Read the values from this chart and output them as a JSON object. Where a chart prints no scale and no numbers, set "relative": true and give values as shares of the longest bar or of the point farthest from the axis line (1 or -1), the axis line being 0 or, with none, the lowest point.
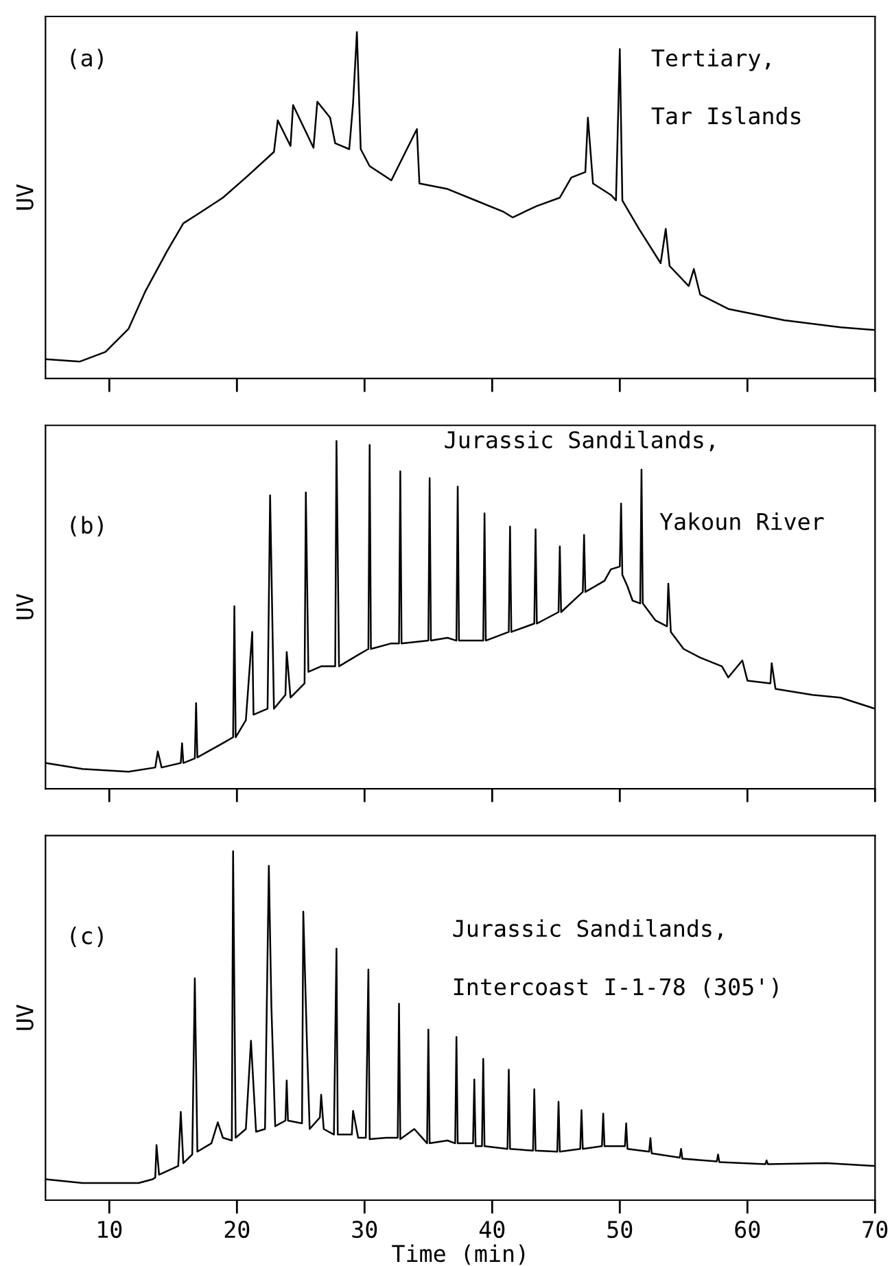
{
  "chart_data": [
    {
      "type": "line",
      "relative": true,
      "ylabel": "UV",
      "xlim": [
        5,
        70
      ],
      "xticks": [
        10,
        20,
        30,
        40,
        50,
        60,
        70
      ],
      "tick_labels": false,
      "color": "#000000",
      "annotations": [
        "(a)",
        "Tertiary,",
        "Tar Islands"
      ],
      "x": [
        5,
        7.7,
        9.7,
        11.5,
        12.8,
        14.5,
        15.8,
        17.2,
        18.9,
        20.7,
        22.9,
        23.2,
        24.2,
        24.4,
        26.0,
        26.3,
        27.3,
        27.7,
        28.8,
        29.1,
        29.4,
        29.7,
        30.4,
        32.1,
        34.1,
        34.3,
        36.5,
        38.7,
        40.9,
        41.6,
        43.5,
        45.3,
        46.2,
        47.3,
        47.5,
        47.9,
        49.3,
        49.7,
        50.0,
        50.2,
        51.5,
        53.2,
        53.6,
        53.9,
        55.4,
        55.8,
        56.3,
        58.5,
        62.9,
        67.3,
        70
      ],
      "values": [
        0.056,
        0.049,
        0.077,
        0.143,
        0.25,
        0.366,
        0.448,
        0.481,
        0.522,
        0.58,
        0.654,
        0.745,
        0.671,
        0.789,
        0.666,
        0.799,
        0.753,
        0.679,
        0.662,
        0.794,
        1.0,
        0.662,
        0.613,
        0.572,
        0.72,
        0.563,
        0.547,
        0.514,
        0.481,
        0.465,
        0.498,
        0.522,
        0.58,
        0.596,
        0.753,
        0.563,
        0.53,
        0.514,
        0.951,
        0.514,
        0.432,
        0.333,
        0.432,
        0.325,
        0.267,
        0.316,
        0.242,
        0.201,
        0.168,
        0.148,
        0.14
      ]
    },
    {
      "type": "line",
      "relative": true,
      "ylabel": "UV",
      "xlim": [
        5,
        70
      ],
      "xticks": [
        10,
        20,
        30,
        40,
        50,
        60,
        70
      ],
      "tick_labels": false,
      "color": "#000000",
      "annotations": [
        "(b)",
        "Jurassic Sandilands,",
        "Yakoun River"
      ],
      "x": [
        5,
        7.9,
        11.5,
        13.6,
        13.8,
        14.1,
        15.6,
        15.7,
        15.8,
        16.7,
        16.8,
        16.9,
        18.9,
        19.7,
        19.8,
        19.9,
        20.7,
        21.2,
        21.3,
        22.4,
        22.6,
        22.9,
        23.8,
        23.9,
        24.2,
        25.3,
        25.4,
        25.6,
        26.6,
        27.7,
        27.8,
        28.0,
        29.5,
        30.3,
        30.4,
        30.5,
        32.1,
        32.7,
        32.8,
        32.9,
        35.0,
        35.1,
        35.2,
        36.5,
        37.2,
        37.3,
        37.4,
        39.3,
        39.4,
        39.5,
        41.3,
        41.4,
        41.5,
        43.3,
        43.4,
        43.5,
        45.2,
        45.3,
        45.4,
        47.1,
        47.2,
        47.3,
        48.8,
        49.3,
        50.0,
        50.1,
        50.2,
        50.6,
        51.0,
        51.6,
        51.7,
        51.8,
        52.8,
        53.7,
        53.8,
        54.0,
        55.0,
        56.3,
        58.0,
        58.5,
        59.6,
        60.0,
        61.8,
        61.9,
        62.2,
        65.1,
        67.3,
        70
      ],
      "values": [
        0.074,
        0.057,
        0.049,
        0.061,
        0.107,
        0.061,
        0.074,
        0.131,
        0.074,
        0.087,
        0.246,
        0.09,
        0.131,
        0.148,
        0.525,
        0.148,
        0.197,
        0.451,
        0.213,
        0.23,
        0.844,
        0.23,
        0.27,
        0.393,
        0.262,
        0.303,
        0.852,
        0.336,
        0.352,
        0.352,
        1.0,
        0.352,
        0.385,
        0.402,
        0.989,
        0.402,
        0.418,
        0.418,
        0.913,
        0.418,
        0.426,
        0.893,
        0.426,
        0.434,
        0.426,
        0.869,
        0.426,
        0.426,
        0.792,
        0.426,
        0.451,
        0.754,
        0.451,
        0.475,
        0.746,
        0.475,
        0.508,
        0.697,
        0.508,
        0.566,
        0.73,
        0.566,
        0.598,
        0.631,
        0.639,
        0.82,
        0.615,
        0.582,
        0.541,
        0.533,
        0.918,
        0.533,
        0.484,
        0.467,
        0.59,
        0.451,
        0.402,
        0.377,
        0.352,
        0.32,
        0.369,
        0.311,
        0.303,
        0.361,
        0.287,
        0.27,
        0.262,
        0.23
      ]
    },
    {
      "type": "line",
      "relative": true,
      "ylabel": "UV",
      "xlabel": "Time (min)",
      "xlim": [
        5,
        70
      ],
      "xticks": [
        10,
        20,
        30,
        40,
        50,
        60,
        70
      ],
      "tick_labels": "x",
      "color": "#000000",
      "annotations": [
        "(c)",
        "Jurassic Sandilands,",
        "Intercoast I-1-78 (305')"
      ],
      "x": [
        5,
        7.9,
        12.3,
        13.4,
        13.6,
        13.7,
        13.9,
        15.4,
        15.6,
        15.8,
        16.5,
        16.7,
        16.9,
        18.0,
        18.5,
        18.9,
        19.6,
        19.7,
        19.9,
        20.7,
        21.1,
        21.5,
        22.2,
        22.5,
        22.7,
        23.0,
        23.8,
        23.9,
        24.0,
        25.1,
        25.2,
        25.5,
        25.7,
        26.5,
        26.6,
        26.8,
        27.6,
        27.8,
        27.9,
        29.0,
        29.1,
        29.5,
        30.1,
        30.3,
        30.4,
        31.7,
        32.6,
        32.7,
        32.8,
        33.9,
        34.9,
        35.0,
        35.1,
        36.5,
        37.1,
        37.2,
        37.3,
        38.5,
        38.6,
        38.7,
        39.2,
        39.3,
        39.4,
        41.2,
        41.3,
        41.4,
        43.2,
        43.3,
        43.4,
        45.1,
        45.2,
        45.3,
        46.9,
        47.0,
        47.1,
        48.6,
        48.7,
        48.8,
        50.4,
        50.5,
        50.6,
        52.3,
        52.4,
        52.5,
        54.7,
        54.8,
        54.9,
        57.6,
        57.7,
        57.8,
        61.4,
        61.5,
        61.6,
        66.2,
        70
      ],
      "values": [
        0.06,
        0.049,
        0.049,
        0.06,
        0.065,
        0.158,
        0.073,
        0.098,
        0.253,
        0.106,
        0.131,
        0.636,
        0.139,
        0.163,
        0.223,
        0.179,
        0.171,
        1.0,
        0.179,
        0.204,
        0.457,
        0.196,
        0.204,
        0.958,
        0.555,
        0.212,
        0.228,
        0.343,
        0.228,
        0.22,
        0.827,
        0.432,
        0.204,
        0.237,
        0.302,
        0.204,
        0.188,
        0.721,
        0.188,
        0.188,
        0.256,
        0.179,
        0.179,
        0.661,
        0.175,
        0.179,
        0.179,
        0.563,
        0.175,
        0.204,
        0.163,
        0.489,
        0.163,
        0.171,
        0.163,
        0.468,
        0.163,
        0.163,
        0.346,
        0.155,
        0.155,
        0.405,
        0.155,
        0.147,
        0.374,
        0.147,
        0.142,
        0.318,
        0.142,
        0.139,
        0.282,
        0.139,
        0.147,
        0.258,
        0.147,
        0.155,
        0.248,
        0.155,
        0.155,
        0.22,
        0.147,
        0.139,
        0.178,
        0.134,
        0.122,
        0.147,
        0.119,
        0.111,
        0.131,
        0.109,
        0.103,
        0.114,
        0.103,
        0.106,
        0.098
      ]
    }
  ]
}
